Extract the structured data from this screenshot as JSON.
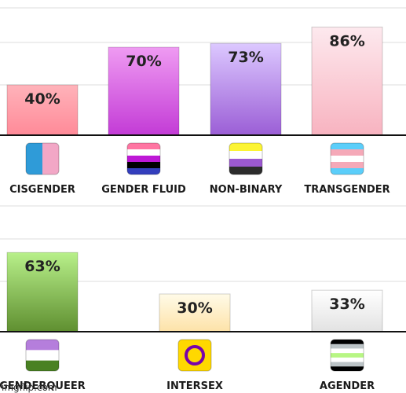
{
  "chart_data": [
    {
      "type": "bar",
      "categories": [
        "CISGENDER",
        "GENDER FLUID",
        "NON-BINARY",
        "TRANSGENDER"
      ],
      "values": [
        40,
        70,
        73,
        86
      ],
      "data_labels": [
        "40%",
        "70%",
        "73%",
        "86%"
      ],
      "ylim": [
        0,
        100
      ],
      "grid": true,
      "colors": [
        [
          "#ffb3ba",
          "#ff8a98"
        ],
        [
          "#ef9bf2",
          "#c33bd6"
        ],
        [
          "#dcc8ff",
          "#9b5ed6"
        ],
        [
          "#fde9ee",
          "#f8b3c0"
        ]
      ],
      "icons": [
        "cisgender-flag-icon",
        "gender-fluid-flag-icon",
        "non-binary-flag-icon",
        "transgender-flag-icon"
      ]
    },
    {
      "type": "bar",
      "categories": [
        "GENDERQUEER",
        "INTERSEX",
        "AGENDER"
      ],
      "values": [
        63,
        30,
        33
      ],
      "data_labels": [
        "63%",
        "30%",
        "33%"
      ],
      "ylim": [
        0,
        100
      ],
      "grid": true,
      "colors": [
        [
          "#b8f08a",
          "#5f8f30"
        ],
        [
          "#fffbe8",
          "#fde2a8"
        ],
        [
          "#ffffff",
          "#e2e2e2"
        ]
      ],
      "icons": [
        "genderqueer-flag-icon",
        "intersex-flag-icon",
        "agender-flag-icon"
      ]
    }
  ],
  "watermark": "imgflip.com"
}
